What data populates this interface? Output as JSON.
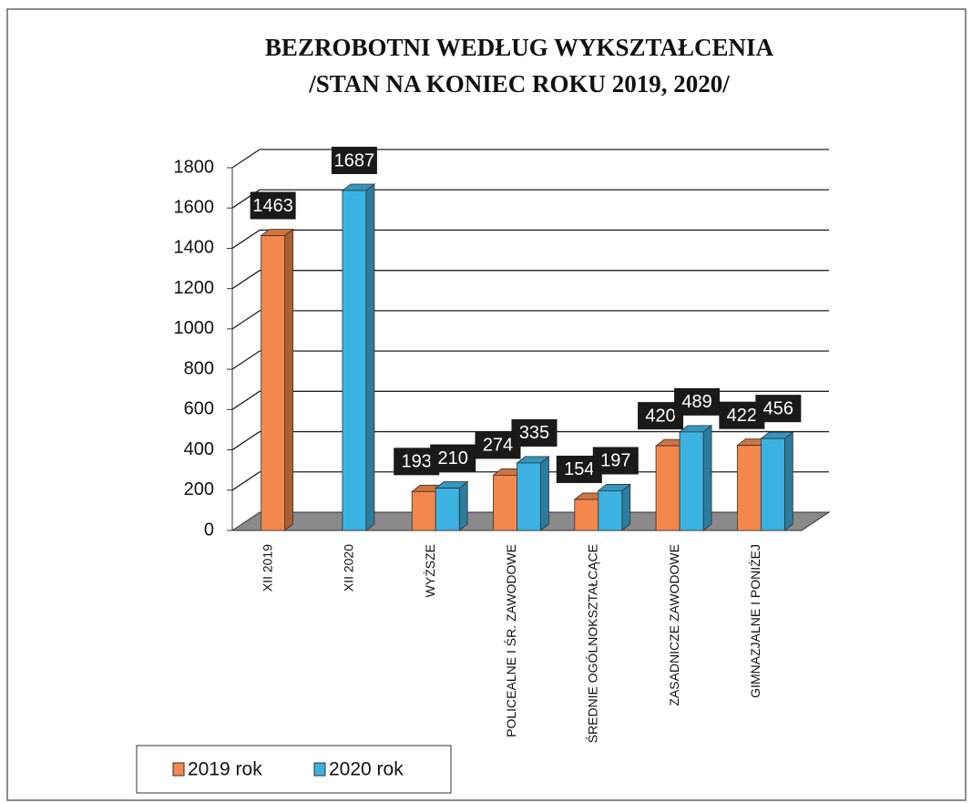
{
  "chart_data": {
    "type": "bar3d",
    "title": [
      "BEZROBOTNI WEDŁUG WYKSZTAŁCENIA",
      "/STAN NA KONIEC ROKU 2019, 2020/"
    ],
    "categories": [
      "XII 2019",
      "XII 2020",
      "WYŻSZE",
      "POLICEALNE I ŚR. ZAWODOWE",
      "ŚREDNIE OGÓLNOKSZTAŁCĄCE",
      "ZASADNICZE ZAWODOWE",
      "GIMNAZJALNE I PONIŻEJ"
    ],
    "series": [
      {
        "name": "2019 rok",
        "color": "#f4874b",
        "values": [
          1463,
          null,
          193,
          274,
          154,
          420,
          422
        ]
      },
      {
        "name": "2020 rok",
        "color": "#3cb2e2",
        "values": [
          null,
          1687,
          210,
          335,
          197,
          489,
          456
        ]
      }
    ],
    "ylim": [
      0,
      1800
    ],
    "yticks": [
      0,
      200,
      400,
      600,
      800,
      1000,
      1200,
      1400,
      1600,
      1800
    ],
    "grid": true,
    "legend": "bottom-left"
  }
}
